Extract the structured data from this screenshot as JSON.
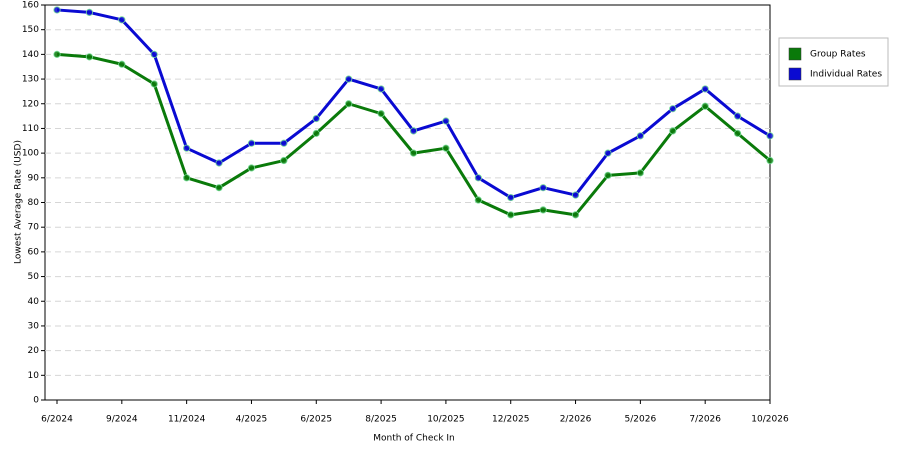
{
  "chart_data": {
    "type": "line",
    "x_label": "Month of Check In",
    "y_label": "Lowest Average Rate (USD)",
    "categories": [
      "6/2024",
      null,
      "9/2024",
      null,
      "11/2024",
      null,
      "4/2025",
      null,
      "6/2025",
      null,
      "8/2025",
      null,
      "10/2025",
      null,
      "12/2025",
      null,
      "2/2026",
      null,
      "5/2026",
      null,
      "7/2026",
      null,
      "10/2026"
    ],
    "series": [
      {
        "name": "Group Rates",
        "color": "#0a7a0a",
        "values": [
          140,
          139,
          136,
          128,
          90,
          86,
          94,
          97,
          108,
          120,
          116,
          100,
          102,
          81,
          75,
          77,
          75,
          91,
          92,
          109,
          119,
          108,
          97
        ]
      },
      {
        "name": "Individual Rates",
        "color": "#0a0ad2",
        "values": [
          158,
          157,
          154,
          140,
          102,
          96,
          104,
          104,
          114,
          130,
          126,
          109,
          113,
          90,
          82,
          86,
          83,
          100,
          107,
          118,
          126,
          115,
          107
        ]
      }
    ],
    "ylim": [
      0,
      160
    ],
    "yticks": [
      0,
      10,
      20,
      30,
      40,
      50,
      60,
      70,
      80,
      90,
      100,
      110,
      120,
      130,
      140,
      150,
      160
    ],
    "grid": true,
    "legend": "right"
  }
}
